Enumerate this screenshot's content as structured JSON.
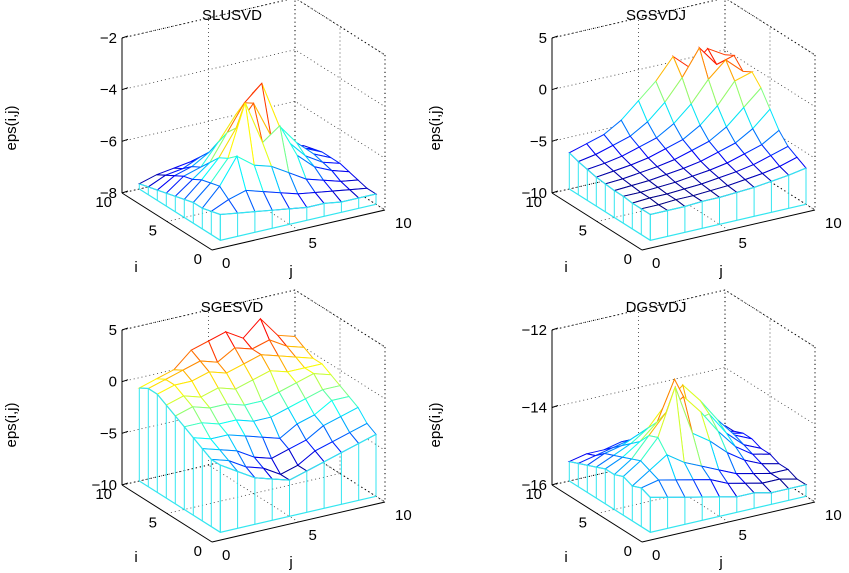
{
  "chart_data": [
    {
      "type": "surface",
      "title": "SLUSVD",
      "xlabel": "j",
      "ylabel": "i",
      "zlabel": "eps(i,j)",
      "xlim": [
        0,
        10
      ],
      "ylim": [
        0,
        10
      ],
      "zlim": [
        -8,
        -2
      ],
      "xticks": [
        "0",
        "5",
        "10"
      ],
      "yticks": [
        "0",
        "5",
        "10"
      ],
      "zticks": [
        {
          "v": -8,
          "label": "−8"
        },
        {
          "v": -6,
          "label": "−6"
        },
        {
          "v": -4,
          "label": "−4"
        },
        {
          "v": -2,
          "label": "−2"
        }
      ],
      "colormap": "jet",
      "i": [
        1,
        2,
        3,
        4,
        5,
        6,
        7,
        8,
        9,
        10
      ],
      "j": [
        1,
        2,
        3,
        4,
        5,
        6,
        7,
        8,
        9,
        10
      ],
      "z": [
        [
          -7.0,
          -7.1,
          -7.2,
          -7.3,
          -7.4,
          -7.5,
          -7.5,
          -7.6,
          -7.6,
          -7.6
        ],
        [
          -7.1,
          -6.8,
          -6.6,
          -6.8,
          -7.0,
          -7.2,
          -7.3,
          -7.4,
          -7.5,
          -7.6
        ],
        [
          -7.2,
          -6.5,
          -5.5,
          -6.0,
          -6.2,
          -6.6,
          -7.0,
          -7.2,
          -7.4,
          -7.5
        ],
        [
          -7.2,
          -6.6,
          -5.8,
          -3.8,
          -5.5,
          -5.0,
          -6.3,
          -6.9,
          -7.2,
          -7.4
        ],
        [
          -7.3,
          -6.7,
          -6.0,
          -5.0,
          -4.2,
          -5.6,
          -6.0,
          -6.7,
          -7.1,
          -7.3
        ],
        [
          -7.4,
          -6.9,
          -6.4,
          -5.4,
          -4.4,
          -3.8,
          -5.6,
          -6.4,
          -7.0,
          -7.3
        ],
        [
          -7.5,
          -7.0,
          -6.8,
          -6.0,
          -5.1,
          -4.4,
          -5.7,
          -6.6,
          -7.0,
          -7.3
        ],
        [
          -7.6,
          -7.2,
          -7.0,
          -6.6,
          -6.0,
          -5.8,
          -6.4,
          -6.9,
          -7.2,
          -7.4
        ],
        [
          -7.7,
          -7.4,
          -7.3,
          -7.0,
          -6.8,
          -6.8,
          -7.0,
          -7.2,
          -7.4,
          -7.5
        ],
        [
          -7.8,
          -7.6,
          -7.5,
          -7.4,
          -7.4,
          -7.4,
          -7.5,
          -7.6,
          -7.6,
          -7.7
        ]
      ]
    },
    {
      "type": "surface",
      "title": "SGSVDJ",
      "xlabel": "j",
      "ylabel": "i",
      "zlabel": "eps(i,j)",
      "xlim": [
        0,
        10
      ],
      "ylim": [
        0,
        10
      ],
      "zlim": [
        -10,
        5
      ],
      "xticks": [
        "0",
        "5",
        "10"
      ],
      "yticks": [
        "0",
        "5",
        "10"
      ],
      "zticks": [
        {
          "v": -10,
          "label": "−10"
        },
        {
          "v": -5,
          "label": "−5"
        },
        {
          "v": 0,
          "label": "0"
        },
        {
          "v": 5,
          "label": "5"
        }
      ],
      "colormap": "jet",
      "i": [
        1,
        2,
        3,
        4,
        5,
        6,
        7,
        8,
        9,
        10
      ],
      "j": [
        1,
        2,
        3,
        4,
        5,
        6,
        7,
        8,
        9,
        10
      ],
      "z": [
        [
          -7.5,
          -7.5,
          -7.5,
          -7.4,
          -7.4,
          -7.3,
          -7.2,
          -7.0,
          -6.8,
          -6.5
        ],
        [
          -7.5,
          -7.5,
          -7.4,
          -7.4,
          -7.3,
          -7.2,
          -7.0,
          -6.8,
          -6.5,
          -6.0
        ],
        [
          -7.5,
          -7.4,
          -7.4,
          -7.3,
          -7.2,
          -7.0,
          -6.8,
          -6.5,
          -6.0,
          -5.5
        ],
        [
          -7.4,
          -7.4,
          -7.3,
          -7.2,
          -7.0,
          -6.8,
          -6.5,
          -6.0,
          -5.5,
          -4.5
        ],
        [
          -7.4,
          -7.3,
          -7.2,
          -7.0,
          -6.8,
          -6.5,
          -6.0,
          -5.5,
          -4.5,
          -3.0
        ],
        [
          -7.3,
          -7.2,
          -7.0,
          -6.8,
          -6.5,
          -6.0,
          -5.5,
          -4.5,
          -3.0,
          -1.5
        ],
        [
          -7.2,
          -7.0,
          -6.8,
          -6.5,
          -6.0,
          -5.5,
          -4.5,
          -3.0,
          -1.0,
          -0.5
        ],
        [
          -7.0,
          -6.8,
          -6.5,
          -6.0,
          -5.5,
          -4.5,
          -3.0,
          -1.0,
          0.5,
          -1.0
        ],
        [
          -6.8,
          -6.5,
          -6.0,
          -5.5,
          -4.5,
          -3.0,
          -1.0,
          1.5,
          -0.5,
          0.0
        ],
        [
          -6.5,
          -6.0,
          -5.5,
          -4.5,
          -3.0,
          -1.5,
          0.5,
          -1.0,
          0.5,
          -0.5
        ]
      ]
    },
    {
      "type": "surface",
      "title": "SGESVD",
      "xlabel": "j",
      "ylabel": "i",
      "zlabel": "eps(i,j)",
      "xlim": [
        0,
        10
      ],
      "ylim": [
        0,
        10
      ],
      "zlim": [
        -10,
        5
      ],
      "xticks": [
        "0",
        "5",
        "10"
      ],
      "yticks": [
        "0",
        "5",
        "10"
      ],
      "zticks": [
        {
          "v": -10,
          "label": "−10"
        },
        {
          "v": -5,
          "label": "−5"
        },
        {
          "v": 0,
          "label": "0"
        },
        {
          "v": 5,
          "label": "5"
        }
      ],
      "colormap": "jet",
      "i": [
        1,
        2,
        3,
        4,
        5,
        6,
        7,
        8,
        9,
        10
      ],
      "j": [
        1,
        2,
        3,
        4,
        5,
        6,
        7,
        8,
        9,
        10
      ],
      "z": [
        [
          -3.5,
          -4.5,
          -5.5,
          -6.0,
          -6.5,
          -6.0,
          -5.5,
          -5.0,
          -4.5,
          -4.0
        ],
        [
          -3.5,
          -4.0,
          -5.0,
          -5.5,
          -6.5,
          -6.0,
          -5.0,
          -4.5,
          -4.0,
          -3.5
        ],
        [
          -3.0,
          -3.5,
          -4.0,
          -5.0,
          -5.5,
          -5.0,
          -4.5,
          -3.5,
          -3.0,
          -2.5
        ],
        [
          -2.5,
          -3.0,
          -3.0,
          -3.5,
          -4.0,
          -4.5,
          -3.5,
          -3.0,
          -2.0,
          -2.0
        ],
        [
          -2.0,
          -2.0,
          -2.5,
          -2.5,
          -3.0,
          -3.0,
          -2.5,
          -2.0,
          -1.5,
          -1.5
        ],
        [
          -1.5,
          -1.0,
          -1.5,
          -1.5,
          -2.0,
          -2.0,
          -1.5,
          -1.0,
          -0.5,
          -1.0
        ],
        [
          -1.0,
          -0.5,
          -1.0,
          -0.5,
          -1.0,
          -0.5,
          0.0,
          -0.5,
          -0.5,
          -0.5
        ],
        [
          -0.5,
          0.0,
          0.0,
          0.5,
          0.0,
          0.5,
          1.0,
          0.5,
          0.0,
          -0.5
        ],
        [
          -0.5,
          0.0,
          0.5,
          1.0,
          0.5,
          1.5,
          1.0,
          1.5,
          0.5,
          0.0
        ],
        [
          -1.0,
          -0.5,
          0.0,
          1.5,
          2.0,
          2.5,
          1.5,
          3.0,
          1.0,
          0.5
        ]
      ]
    },
    {
      "type": "surface",
      "title": "DGSVDJ",
      "xlabel": "j",
      "ylabel": "i",
      "zlabel": "eps(i,j)",
      "xlim": [
        0,
        10
      ],
      "ylim": [
        0,
        10
      ],
      "zlim": [
        -16,
        -12
      ],
      "xticks": [
        "0",
        "5",
        "10"
      ],
      "yticks": [
        "0",
        "5",
        "10"
      ],
      "zticks": [
        {
          "v": -16,
          "label": "−16"
        },
        {
          "v": -14,
          "label": "−14"
        },
        {
          "v": -12,
          "label": "−12"
        }
      ],
      "colormap": "jet",
      "i": [
        1,
        2,
        3,
        4,
        5,
        6,
        7,
        8,
        9,
        10
      ],
      "j": [
        1,
        2,
        3,
        4,
        5,
        6,
        7,
        8,
        9,
        10
      ],
      "z": [
        [
          -15.1,
          -15.2,
          -15.3,
          -15.4,
          -15.5,
          -15.6,
          -15.6,
          -15.7,
          -15.7,
          -15.7
        ],
        [
          -15.0,
          -14.9,
          -15.0,
          -15.1,
          -15.2,
          -15.4,
          -15.5,
          -15.6,
          -15.6,
          -15.7
        ],
        [
          -15.1,
          -14.8,
          -14.5,
          -14.8,
          -15.0,
          -15.2,
          -15.4,
          -15.5,
          -15.6,
          -15.6
        ],
        [
          -15.0,
          -14.7,
          -14.2,
          -13.0,
          -14.3,
          -14.6,
          -15.0,
          -15.3,
          -15.5,
          -15.6
        ],
        [
          -15.1,
          -14.8,
          -14.3,
          -13.8,
          -13.5,
          -14.0,
          -14.6,
          -15.1,
          -15.4,
          -15.5
        ],
        [
          -15.1,
          -14.9,
          -14.6,
          -14.2,
          -13.2,
          -14.4,
          -14.3,
          -14.9,
          -15.3,
          -15.5
        ],
        [
          -15.2,
          -15.0,
          -14.8,
          -14.5,
          -14.0,
          -13.6,
          -14.1,
          -14.7,
          -15.2,
          -15.4
        ],
        [
          -15.3,
          -15.1,
          -15.0,
          -14.8,
          -14.6,
          -14.5,
          -14.6,
          -15.0,
          -15.3,
          -15.4
        ],
        [
          -15.4,
          -15.3,
          -15.2,
          -15.1,
          -15.0,
          -15.0,
          -15.1,
          -15.2,
          -15.4,
          -15.5
        ],
        [
          -15.5,
          -15.4,
          -15.4,
          -15.3,
          -15.3,
          -15.3,
          -15.4,
          -15.4,
          -15.5,
          -15.5
        ]
      ]
    }
  ]
}
